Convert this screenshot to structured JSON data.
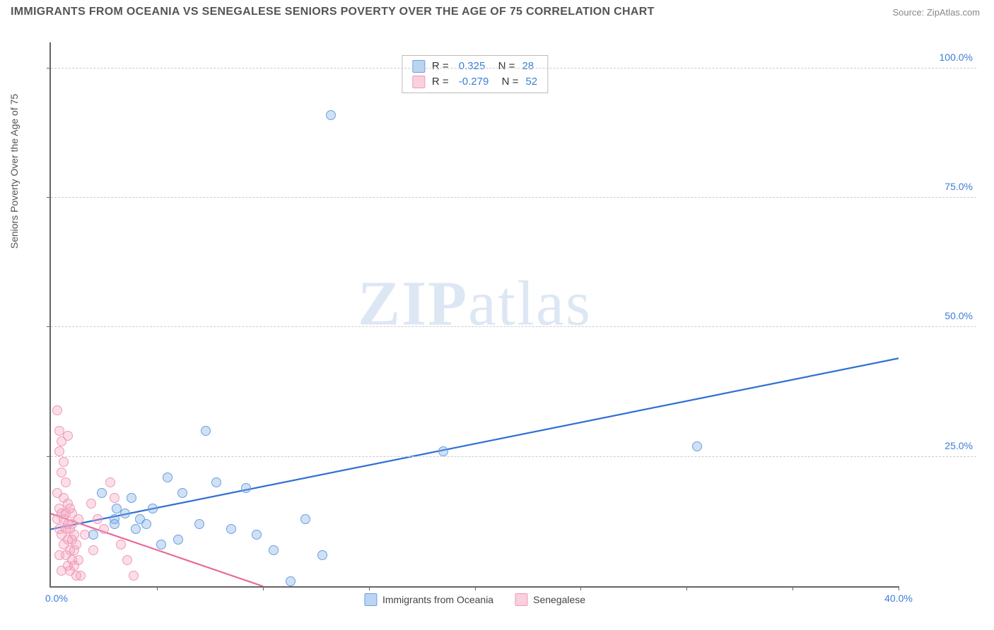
{
  "header": {
    "title": "IMMIGRANTS FROM OCEANIA VS SENEGALESE SENIORS POVERTY OVER THE AGE OF 75 CORRELATION CHART",
    "source": "Source: ZipAtlas.com"
  },
  "chart": {
    "type": "scatter",
    "y_axis_label": "Seniors Poverty Over the Age of 75",
    "watermark_bold": "ZIP",
    "watermark_rest": "atlas",
    "xlim": [
      0,
      40
    ],
    "ylim": [
      0,
      105
    ],
    "x_ticks": [
      0,
      5,
      10,
      15,
      20,
      25,
      30,
      35,
      40
    ],
    "x_tick_labels": [
      "0.0%",
      "",
      "",
      "",
      "",
      "",
      "",
      "",
      "40.0%"
    ],
    "y_ticks": [
      25,
      50,
      75,
      100
    ],
    "y_tick_labels": [
      "25.0%",
      "50.0%",
      "75.0%",
      "100.0%"
    ],
    "grid_color": "#cccccc",
    "axis_color": "#666666",
    "background_color": "#ffffff",
    "series": [
      {
        "name": "Immigrants from Oceania",
        "color_fill": "rgba(120,170,230,0.35)",
        "color_stroke": "#6aa0e0",
        "trend_color": "#2e6fd6",
        "trend_dash_color": "#7aa8e6",
        "correlation_r": "0.325",
        "correlation_n": "28",
        "trend_start": [
          0,
          11
        ],
        "trend_end": [
          40,
          44
        ],
        "points": [
          [
            2.0,
            10
          ],
          [
            2.4,
            18
          ],
          [
            3.0,
            13
          ],
          [
            3.0,
            12
          ],
          [
            3.5,
            14
          ],
          [
            3.8,
            17
          ],
          [
            4.0,
            11
          ],
          [
            4.2,
            13
          ],
          [
            4.8,
            15
          ],
          [
            5.2,
            8
          ],
          [
            5.5,
            21
          ],
          [
            6.2,
            18
          ],
          [
            7.0,
            12
          ],
          [
            7.3,
            30
          ],
          [
            7.8,
            20
          ],
          [
            8.5,
            11
          ],
          [
            9.2,
            19
          ],
          [
            9.7,
            10
          ],
          [
            10.5,
            7
          ],
          [
            11.3,
            1
          ],
          [
            12.0,
            13
          ],
          [
            13.2,
            91
          ],
          [
            12.8,
            6
          ],
          [
            18.5,
            26
          ],
          [
            30.5,
            27
          ],
          [
            3.1,
            15
          ],
          [
            4.5,
            12
          ],
          [
            6.0,
            9
          ]
        ]
      },
      {
        "name": "Senegalese",
        "color_fill": "rgba(245,160,190,0.35)",
        "color_stroke": "#ec9bb8",
        "trend_color": "#e86a9a",
        "trend_dash_color": "#f2a8c0",
        "correlation_r": "-0.279",
        "correlation_n": "52",
        "trend_start": [
          0,
          14
        ],
        "trend_end": [
          10,
          0
        ],
        "points": [
          [
            0.3,
            34
          ],
          [
            0.4,
            30
          ],
          [
            0.5,
            28
          ],
          [
            0.4,
            26
          ],
          [
            0.6,
            24
          ],
          [
            0.8,
            29
          ],
          [
            0.5,
            22
          ],
          [
            0.7,
            20
          ],
          [
            0.3,
            18
          ],
          [
            0.6,
            17
          ],
          [
            0.8,
            16
          ],
          [
            0.4,
            15
          ],
          [
            0.9,
            15
          ],
          [
            0.5,
            14
          ],
          [
            0.7,
            14
          ],
          [
            1.0,
            14
          ],
          [
            0.3,
            13
          ],
          [
            0.6,
            13
          ],
          [
            0.8,
            12
          ],
          [
            1.0,
            12
          ],
          [
            0.4,
            11
          ],
          [
            0.7,
            11
          ],
          [
            0.9,
            11
          ],
          [
            1.1,
            10
          ],
          [
            0.5,
            10
          ],
          [
            0.8,
            9
          ],
          [
            1.0,
            9
          ],
          [
            1.2,
            8
          ],
          [
            0.6,
            8
          ],
          [
            0.9,
            7
          ],
          [
            1.1,
            7
          ],
          [
            0.4,
            6
          ],
          [
            0.7,
            6
          ],
          [
            1.0,
            5
          ],
          [
            1.3,
            5
          ],
          [
            0.8,
            4
          ],
          [
            1.1,
            4
          ],
          [
            0.5,
            3
          ],
          [
            0.9,
            3
          ],
          [
            1.2,
            2
          ],
          [
            1.4,
            2
          ],
          [
            1.9,
            16
          ],
          [
            2.2,
            13
          ],
          [
            2.5,
            11
          ],
          [
            2.8,
            20
          ],
          [
            3.0,
            17
          ],
          [
            3.3,
            8
          ],
          [
            3.6,
            5
          ],
          [
            3.9,
            2
          ],
          [
            2.0,
            7
          ],
          [
            1.6,
            10
          ],
          [
            1.3,
            13
          ]
        ]
      }
    ],
    "bottom_legend": [
      "Immigrants from Oceania",
      "Senegalese"
    ]
  }
}
